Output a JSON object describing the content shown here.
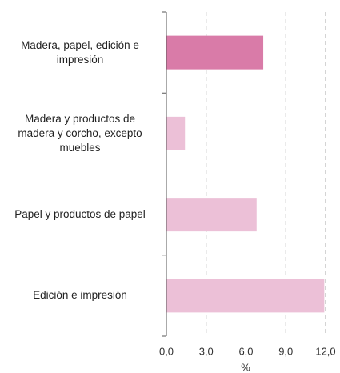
{
  "chart_data": {
    "type": "barh",
    "categories": [
      "Madera, papel, edición e\nimpresión",
      "Madera y productos de\nmadera y corcho, excepto\nmuebles",
      "Papel y productos de papel",
      "Edición e impresión"
    ],
    "values": [
      7.3,
      1.4,
      6.8,
      11.9
    ],
    "colors": [
      "#d97ba8",
      "#ecc0d7",
      "#ecc0d7",
      "#ecc0d7"
    ],
    "xlim": [
      0,
      12
    ],
    "xticks": [
      {
        "value": 0,
        "label": "0,0"
      },
      {
        "value": 3,
        "label": "3,0"
      },
      {
        "value": 6,
        "label": "6,0"
      },
      {
        "value": 9,
        "label": "9,0"
      },
      {
        "value": 12,
        "label": "12,0"
      }
    ],
    "xlabel": "%",
    "grid": true
  }
}
